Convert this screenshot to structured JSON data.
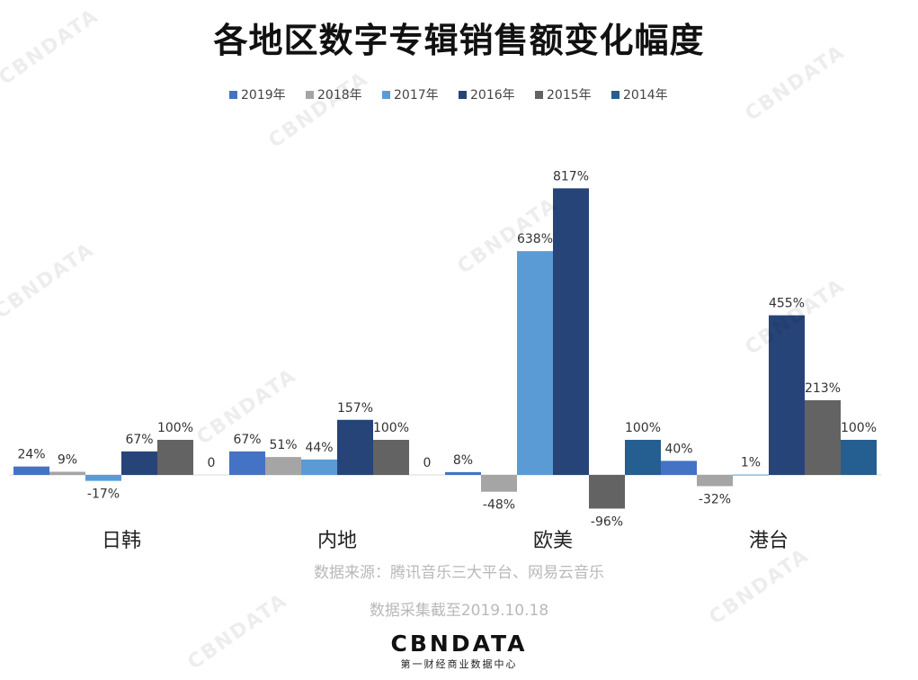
{
  "title": "各地区数字专辑销售额变化幅度",
  "source": "数据来源：腾讯音乐三大平台、网易云音乐",
  "note": "数据采集截至2019.10.18",
  "brand": {
    "name": "CBNDATA",
    "subtitle": "第一财经商业数据中心",
    "watermark": "CBNDATA"
  },
  "chart_data": {
    "type": "bar",
    "title": "各地区数字专辑销售额变化幅度",
    "xlabel": "",
    "ylabel": "",
    "legend_position": "top",
    "grid": false,
    "categories": [
      "日韩",
      "内地",
      "欧美",
      "港台"
    ],
    "unit": "%",
    "series": [
      {
        "name": "2019年",
        "color": "#4472C4",
        "values": [
          24,
          67,
          8,
          40
        ],
        "labels": [
          "24%",
          "67%",
          "8%",
          "40%"
        ]
      },
      {
        "name": "2018年",
        "color": "#A5A5A5",
        "values": [
          9,
          51,
          -48,
          -32
        ],
        "labels": [
          "9%",
          "51%",
          "-48%",
          "-32%"
        ]
      },
      {
        "name": "2017年",
        "color": "#5B9BD5",
        "values": [
          -17,
          44,
          638,
          1
        ],
        "labels": [
          "-17%",
          "44%",
          "638%",
          "1%"
        ]
      },
      {
        "name": "2016年",
        "color": "#264478",
        "values": [
          67,
          157,
          817,
          455
        ],
        "labels": [
          "67%",
          "157%",
          "817%",
          "455%"
        ]
      },
      {
        "name": "2015年",
        "color": "#636363",
        "values": [
          100,
          100,
          -96,
          213
        ],
        "labels": [
          "100%",
          "100%",
          "-96%",
          "213%"
        ]
      },
      {
        "name": "2014年",
        "color": "#255E91",
        "values": [
          0,
          0,
          100,
          100
        ],
        "labels": [
          "0",
          "0",
          "100%",
          "100%"
        ]
      }
    ]
  }
}
